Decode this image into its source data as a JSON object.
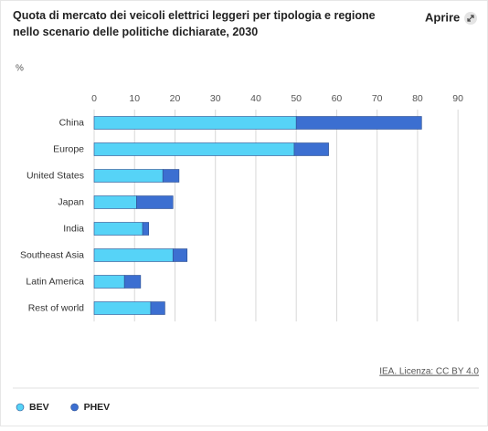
{
  "open_button": "Aprire",
  "chart_data": {
    "type": "bar",
    "orientation": "horizontal",
    "stacked": true,
    "title": "Quota di mercato dei veicoli elettrici leggeri per tipologia e regione nello scenario delle politiche dichiarate, 2030",
    "x_label": "%",
    "source": "IEA. Licenza: CC BY 4.0",
    "categories": [
      "China",
      "Europe",
      "United States",
      "Japan",
      "India",
      "Southeast Asia",
      "Latin America",
      "Rest of world"
    ],
    "series": [
      {
        "name": "BEV",
        "color": "#56d3f7",
        "values": [
          50,
          49.5,
          17,
          10.5,
          12,
          19.5,
          7.5,
          14
        ]
      },
      {
        "name": "PHEV",
        "color": "#3c6fd1",
        "values": [
          31,
          8.5,
          4,
          9,
          1.5,
          3.5,
          4,
          3.5
        ]
      }
    ],
    "xlim": [
      0,
      92
    ],
    "xticks": [
      0,
      10,
      20,
      30,
      40,
      50,
      60,
      70,
      80,
      90
    ],
    "grid": true
  }
}
